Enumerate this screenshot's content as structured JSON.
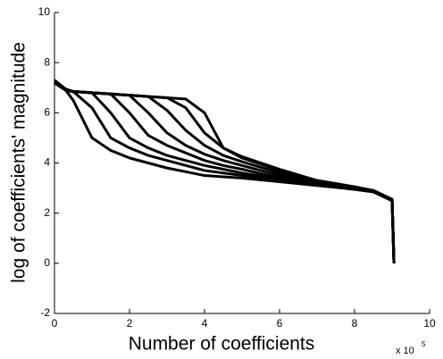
{
  "chart_data": {
    "type": "line",
    "x_label": "Number of coefficients",
    "y_label": "log of coefficients' magnitude",
    "x_scale_base": "x 10",
    "x_scale_exponent": "5",
    "x": [
      0,
      0.3,
      0.5,
      1,
      1.5,
      2,
      2.5,
      3,
      3.5,
      4,
      4.5,
      5,
      6,
      7,
      8,
      8.5,
      9,
      9.05
    ],
    "series": [
      {
        "color": "#000000",
        "values": [
          7.2,
          6.9,
          6.5,
          5.0,
          4.5,
          4.2,
          4.0,
          3.8,
          3.65,
          3.5,
          3.45,
          3.4,
          3.25,
          3.1,
          2.95,
          2.85,
          2.5,
          0
        ]
      },
      {
        "color": "#000000",
        "values": [
          7.2,
          6.9,
          6.85,
          6.2,
          5.0,
          4.6,
          4.3,
          4.1,
          3.9,
          3.7,
          3.6,
          3.5,
          3.3,
          3.15,
          2.95,
          2.85,
          2.5,
          0
        ]
      },
      {
        "color": "#000000",
        "values": [
          7.2,
          6.9,
          6.85,
          6.8,
          6.0,
          5.0,
          4.6,
          4.3,
          4.1,
          3.9,
          3.75,
          3.6,
          3.35,
          3.15,
          2.95,
          2.85,
          2.5,
          0
        ]
      },
      {
        "color": "#000000",
        "values": [
          7.2,
          6.9,
          6.85,
          6.8,
          6.75,
          6.0,
          5.1,
          4.7,
          4.4,
          4.1,
          3.9,
          3.75,
          3.4,
          3.2,
          3.0,
          2.85,
          2.5,
          0
        ]
      },
      {
        "color": "#000000",
        "values": [
          7.2,
          6.9,
          6.85,
          6.8,
          6.75,
          6.7,
          6.0,
          5.2,
          4.7,
          4.35,
          4.1,
          3.9,
          3.5,
          3.2,
          3.0,
          2.9,
          2.55,
          0
        ]
      },
      {
        "color": "#000000",
        "values": [
          7.2,
          6.9,
          6.85,
          6.8,
          6.75,
          6.7,
          6.65,
          6.1,
          5.3,
          4.7,
          4.3,
          4.05,
          3.6,
          3.25,
          3.0,
          2.9,
          2.55,
          0
        ]
      },
      {
        "color": "#000000",
        "values": [
          7.2,
          6.9,
          6.85,
          6.8,
          6.75,
          6.7,
          6.65,
          6.6,
          6.2,
          5.2,
          4.6,
          4.2,
          3.7,
          3.3,
          3.05,
          2.9,
          2.55,
          0
        ]
      },
      {
        "color": "#000000",
        "values": [
          7.3,
          6.95,
          6.85,
          6.8,
          6.75,
          6.7,
          6.65,
          6.6,
          6.55,
          6.0,
          4.6,
          4.25,
          3.75,
          3.3,
          3.05,
          2.9,
          2.55,
          0
        ]
      }
    ],
    "xlim": [
      0,
      10
    ],
    "xticks": [
      0,
      2,
      4,
      6,
      8,
      10
    ],
    "ylim": [
      -2,
      10
    ],
    "yticks": [
      -2,
      0,
      2,
      4,
      6,
      8,
      10
    ],
    "line_width": 3
  }
}
